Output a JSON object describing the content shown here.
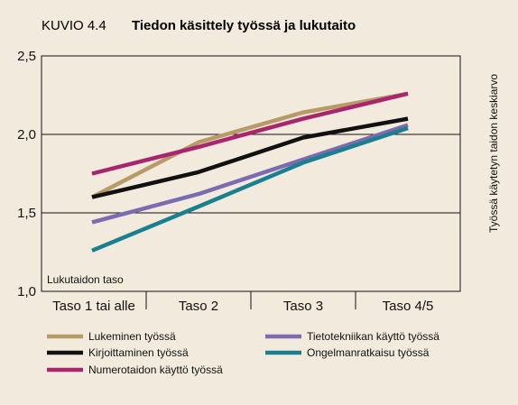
{
  "figure_label": "KUVIO 4.4",
  "chart_data": {
    "type": "line",
    "title": "Tiedon käsittely työssä ja lukutaito",
    "xlabel": "Lukutaidon taso",
    "ylabel": "Työssä käytetyn taidon keskiarvo",
    "categories": [
      "Taso 1 tai alle",
      "Taso 2",
      "Taso 3",
      "Taso 4/5"
    ],
    "ylim": [
      1.0,
      2.5
    ],
    "yticks": [
      "1,0",
      "1,5",
      "2,0",
      "2,5"
    ],
    "ytick_values": [
      1.0,
      1.5,
      2.0,
      2.5
    ],
    "grid": true,
    "legend_position": "bottom",
    "series": [
      {
        "name": "Lukeminen työssä",
        "color": "#b89a66",
        "values": [
          1.6,
          1.95,
          2.14,
          2.26
        ]
      },
      {
        "name": "Kirjoittaminen työssä",
        "color": "#111111",
        "values": [
          1.6,
          1.76,
          1.98,
          2.1
        ]
      },
      {
        "name": "Numerotaidon käyttö työssä",
        "color": "#a8266e",
        "values": [
          1.75,
          1.92,
          2.1,
          2.26
        ]
      },
      {
        "name": "Tietotekniikan käyttö työssä",
        "color": "#7c6bb0",
        "values": [
          1.44,
          1.62,
          1.84,
          2.06
        ]
      },
      {
        "name": "Ongelmanratkaisu työssä",
        "color": "#1a8090",
        "values": [
          1.26,
          1.54,
          1.82,
          2.04
        ]
      }
    ]
  }
}
